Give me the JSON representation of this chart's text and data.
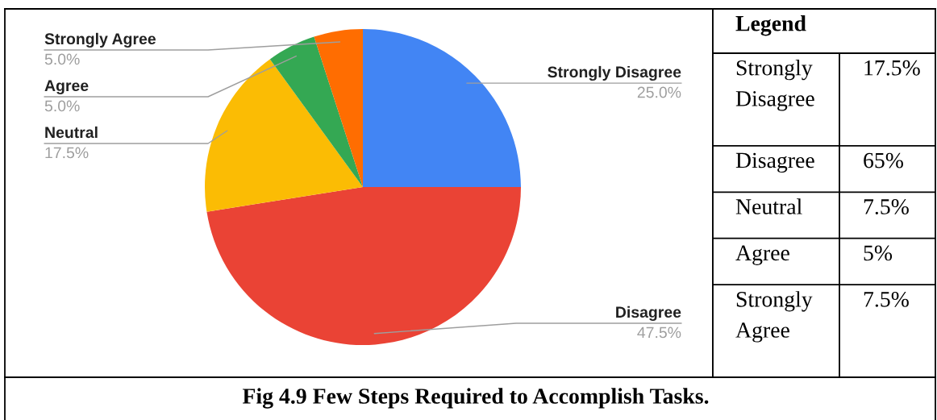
{
  "chart_data": [
    {
      "type": "pie",
      "categories": [
        "Strongly Disagree",
        "Disagree",
        "Neutral",
        "Agree",
        "Strongly Agree"
      ],
      "values": [
        25.0,
        47.5,
        17.5,
        5.0,
        5.0
      ],
      "colors": [
        "#4285f4",
        "#ea4335",
        "#fbbc04",
        "#34a853",
        "#ff6d01"
      ],
      "value_labels": [
        "25.0%",
        "47.5%",
        "17.5%",
        "5.0%",
        "5.0%"
      ],
      "annotations": [
        "Fig 4.9 Few Steps Required to Accomplish Tasks."
      ]
    },
    {
      "type": "other",
      "title": "Legend",
      "annotations": [
        "Strongly Disagree",
        "17.5%",
        "Disagree",
        "65%",
        "Neutral",
        "7.5%",
        "Agree",
        "5%",
        "Strongly Agree",
        "7.5%"
      ]
    }
  ]
}
